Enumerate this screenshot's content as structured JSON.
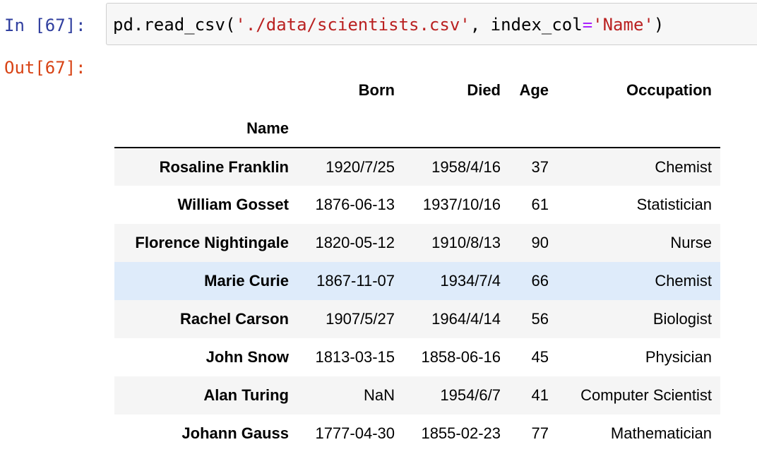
{
  "input_prompt": "In [67]:",
  "output_prompt": "Out[67]:",
  "code": {
    "func": "pd.read_csv(",
    "path_literal": "'./data/scientists.csv'",
    "sep": ", ",
    "kwarg": "index_col",
    "eq": "=",
    "index_literal": "'Name'",
    "close": ")"
  },
  "table": {
    "index_name": "Name",
    "columns": [
      "Born",
      "Died",
      "Age",
      "Occupation"
    ],
    "rows": [
      {
        "name": "Rosaline Franklin",
        "born": "1920/7/25",
        "died": "1958/4/16",
        "age": "37",
        "occupation": "Chemist"
      },
      {
        "name": "William Gosset",
        "born": "1876-06-13",
        "died": "1937/10/16",
        "age": "61",
        "occupation": "Statistician"
      },
      {
        "name": "Florence Nightingale",
        "born": "1820-05-12",
        "died": "1910/8/13",
        "age": "90",
        "occupation": "Nurse"
      },
      {
        "name": "Marie Curie",
        "born": "1867-11-07",
        "died": "1934/7/4",
        "age": "66",
        "occupation": "Chemist"
      },
      {
        "name": "Rachel Carson",
        "born": "1907/5/27",
        "died": "1964/4/14",
        "age": "56",
        "occupation": "Biologist"
      },
      {
        "name": "John Snow",
        "born": "1813-03-15",
        "died": "1858-06-16",
        "age": "45",
        "occupation": "Physician"
      },
      {
        "name": "Alan Turing",
        "born": "NaN",
        "died": "1954/6/7",
        "age": "41",
        "occupation": "Computer Scientist"
      },
      {
        "name": "Johann Gauss",
        "born": "1777-04-30",
        "died": "1855-02-23",
        "age": "77",
        "occupation": "Mathematician"
      }
    ]
  },
  "colors": {
    "input_prompt": "#303f9f",
    "output_prompt": "#d84315",
    "string_literal": "#ba2121",
    "operator": "#aa22ff",
    "row_stripe": "#f5f5f5",
    "row_hover": "#deebfa"
  }
}
